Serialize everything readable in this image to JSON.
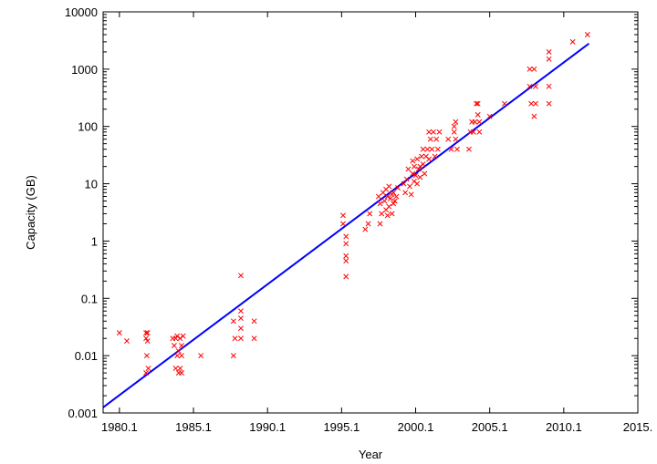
{
  "chart_data": {
    "type": "scatter",
    "xlabel": "Year",
    "ylabel": "Capacity (GB)",
    "xlim": [
      1979,
      2015.1
    ],
    "ylim": [
      0.001,
      10000
    ],
    "y_scale": "log",
    "x_ticks": [
      {
        "value": 1980.1,
        "label": "1980.1"
      },
      {
        "value": 1985.1,
        "label": "1985.1"
      },
      {
        "value": 1990.1,
        "label": "1990.1"
      },
      {
        "value": 1995.1,
        "label": "1995.1"
      },
      {
        "value": 2000.1,
        "label": "2000.1"
      },
      {
        "value": 2005.1,
        "label": "2005.1"
      },
      {
        "value": 2010.1,
        "label": "2010.1"
      },
      {
        "value": 2015.1,
        "label": "2015."
      }
    ],
    "y_ticks": [
      {
        "value": 0.001,
        "label": "0.001"
      },
      {
        "value": 0.01,
        "label": "0.01"
      },
      {
        "value": 0.1,
        "label": "0.1"
      },
      {
        "value": 1,
        "label": "1"
      },
      {
        "value": 10,
        "label": "10"
      },
      {
        "value": 100,
        "label": "100"
      },
      {
        "value": 1000,
        "label": "1000"
      },
      {
        "value": 10000,
        "label": "10000"
      }
    ],
    "grid": false,
    "marker_color": "#ff0000",
    "fit_color": "#0000ff",
    "fit_line": {
      "x": [
        1979,
        2011.8
      ],
      "y": [
        0.00125,
        2800
      ]
    },
    "points": [
      {
        "x": 1980.1,
        "y": 0.025
      },
      {
        "x": 1980.6,
        "y": 0.018
      },
      {
        "x": 1981.9,
        "y": 0.025
      },
      {
        "x": 1981.9,
        "y": 0.02
      },
      {
        "x": 1982.0,
        "y": 0.025
      },
      {
        "x": 1982.0,
        "y": 0.018
      },
      {
        "x": 1981.95,
        "y": 0.01
      },
      {
        "x": 1982.05,
        "y": 0.006
      },
      {
        "x": 1981.9,
        "y": 0.005
      },
      {
        "x": 1983.7,
        "y": 0.02
      },
      {
        "x": 1983.8,
        "y": 0.015
      },
      {
        "x": 1983.9,
        "y": 0.02
      },
      {
        "x": 1984.0,
        "y": 0.01
      },
      {
        "x": 1984.1,
        "y": 0.012
      },
      {
        "x": 1984.2,
        "y": 0.02
      },
      {
        "x": 1984.3,
        "y": 0.015
      },
      {
        "x": 1984.3,
        "y": 0.01
      },
      {
        "x": 1984.2,
        "y": 0.006
      },
      {
        "x": 1984.1,
        "y": 0.005
      },
      {
        "x": 1984.3,
        "y": 0.005
      },
      {
        "x": 1984.0,
        "y": 0.022
      },
      {
        "x": 1984.4,
        "y": 0.022
      },
      {
        "x": 1983.9,
        "y": 0.006
      },
      {
        "x": 1985.6,
        "y": 0.01
      },
      {
        "x": 1987.8,
        "y": 0.04
      },
      {
        "x": 1987.9,
        "y": 0.02
      },
      {
        "x": 1987.8,
        "y": 0.01
      },
      {
        "x": 1988.3,
        "y": 0.25
      },
      {
        "x": 1988.3,
        "y": 0.06
      },
      {
        "x": 1988.3,
        "y": 0.045
      },
      {
        "x": 1988.3,
        "y": 0.03
      },
      {
        "x": 1988.3,
        "y": 0.02
      },
      {
        "x": 1989.2,
        "y": 0.04
      },
      {
        "x": 1989.2,
        "y": 0.02
      },
      {
        "x": 1995.2,
        "y": 2.8
      },
      {
        "x": 1995.2,
        "y": 2.0
      },
      {
        "x": 1995.4,
        "y": 1.2
      },
      {
        "x": 1995.4,
        "y": 0.9
      },
      {
        "x": 1995.4,
        "y": 0.55
      },
      {
        "x": 1995.4,
        "y": 0.45
      },
      {
        "x": 1995.4,
        "y": 0.24
      },
      {
        "x": 1996.7,
        "y": 1.6
      },
      {
        "x": 1996.9,
        "y": 2.0
      },
      {
        "x": 1997.0,
        "y": 3.0
      },
      {
        "x": 1997.6,
        "y": 6.0
      },
      {
        "x": 1997.7,
        "y": 4.5
      },
      {
        "x": 1997.8,
        "y": 3.0
      },
      {
        "x": 1997.7,
        "y": 2.0
      },
      {
        "x": 1997.9,
        "y": 7.0
      },
      {
        "x": 1998.0,
        "y": 5.0
      },
      {
        "x": 1998.1,
        "y": 8.0
      },
      {
        "x": 1998.1,
        "y": 3.5
      },
      {
        "x": 1998.2,
        "y": 6.0
      },
      {
        "x": 1998.3,
        "y": 4.0
      },
      {
        "x": 1998.3,
        "y": 9.0
      },
      {
        "x": 1998.4,
        "y": 5.5
      },
      {
        "x": 1998.5,
        "y": 6.5
      },
      {
        "x": 1998.5,
        "y": 3.0
      },
      {
        "x": 1998.6,
        "y": 7.0
      },
      {
        "x": 1998.7,
        "y": 5.0
      },
      {
        "x": 1998.8,
        "y": 6.0
      },
      {
        "x": 1998.9,
        "y": 8.5
      },
      {
        "x": 1998.6,
        "y": 4.5
      },
      {
        "x": 1998.2,
        "y": 2.8
      },
      {
        "x": 1999.3,
        "y": 10.0
      },
      {
        "x": 1999.4,
        "y": 7.0
      },
      {
        "x": 1999.5,
        "y": 12.0
      },
      {
        "x": 1999.6,
        "y": 18.0
      },
      {
        "x": 1999.7,
        "y": 9.0
      },
      {
        "x": 1999.8,
        "y": 6.5
      },
      {
        "x": 1999.9,
        "y": 15.0
      },
      {
        "x": 1999.9,
        "y": 25.0
      },
      {
        "x": 2000.0,
        "y": 20.0
      },
      {
        "x": 2000.0,
        "y": 11.0
      },
      {
        "x": 2000.1,
        "y": 14.0
      },
      {
        "x": 2000.2,
        "y": 10.0
      },
      {
        "x": 2000.2,
        "y": 27.0
      },
      {
        "x": 2000.3,
        "y": 18.0
      },
      {
        "x": 2000.4,
        "y": 20.0
      },
      {
        "x": 2000.4,
        "y": 13.0
      },
      {
        "x": 2000.5,
        "y": 30.0
      },
      {
        "x": 2000.6,
        "y": 22.0
      },
      {
        "x": 2000.6,
        "y": 40.0
      },
      {
        "x": 2000.7,
        "y": 15.0
      },
      {
        "x": 2000.8,
        "y": 30.0
      },
      {
        "x": 2000.9,
        "y": 40.0
      },
      {
        "x": 2001.0,
        "y": 80.0
      },
      {
        "x": 2001.0,
        "y": 27.0
      },
      {
        "x": 2001.1,
        "y": 60.0
      },
      {
        "x": 2001.2,
        "y": 40.0
      },
      {
        "x": 2001.3,
        "y": 80.0
      },
      {
        "x": 2001.4,
        "y": 30.0
      },
      {
        "x": 2001.5,
        "y": 60.0
      },
      {
        "x": 2001.6,
        "y": 40.0
      },
      {
        "x": 2001.7,
        "y": 80.0
      },
      {
        "x": 2002.3,
        "y": 60.0
      },
      {
        "x": 2002.5,
        "y": 40.0
      },
      {
        "x": 2002.7,
        "y": 100.0
      },
      {
        "x": 2002.7,
        "y": 80.0
      },
      {
        "x": 2002.8,
        "y": 120.0
      },
      {
        "x": 2002.9,
        "y": 40.0
      },
      {
        "x": 2002.8,
        "y": 60.0
      },
      {
        "x": 2003.7,
        "y": 40.0
      },
      {
        "x": 2003.8,
        "y": 80.0
      },
      {
        "x": 2003.9,
        "y": 120.0
      },
      {
        "x": 2004.0,
        "y": 80.0
      },
      {
        "x": 2004.1,
        "y": 120.0
      },
      {
        "x": 2004.2,
        "y": 250.0
      },
      {
        "x": 2004.3,
        "y": 250.0
      },
      {
        "x": 2004.3,
        "y": 160.0
      },
      {
        "x": 2004.4,
        "y": 120.0
      },
      {
        "x": 2004.4,
        "y": 80.0
      },
      {
        "x": 2005.1,
        "y": 150.0
      },
      {
        "x": 2006.1,
        "y": 250.0
      },
      {
        "x": 2007.8,
        "y": 1000.0
      },
      {
        "x": 2007.8,
        "y": 500.0
      },
      {
        "x": 2007.9,
        "y": 250.0
      },
      {
        "x": 2008.1,
        "y": 1000.0
      },
      {
        "x": 2008.2,
        "y": 500.0
      },
      {
        "x": 2008.2,
        "y": 250.0
      },
      {
        "x": 2008.1,
        "y": 150.0
      },
      {
        "x": 2009.1,
        "y": 2000.0
      },
      {
        "x": 2009.1,
        "y": 1500.0
      },
      {
        "x": 2009.1,
        "y": 500.0
      },
      {
        "x": 2009.1,
        "y": 250.0
      },
      {
        "x": 2010.7,
        "y": 3000.0
      },
      {
        "x": 2011.7,
        "y": 4000.0
      }
    ]
  }
}
